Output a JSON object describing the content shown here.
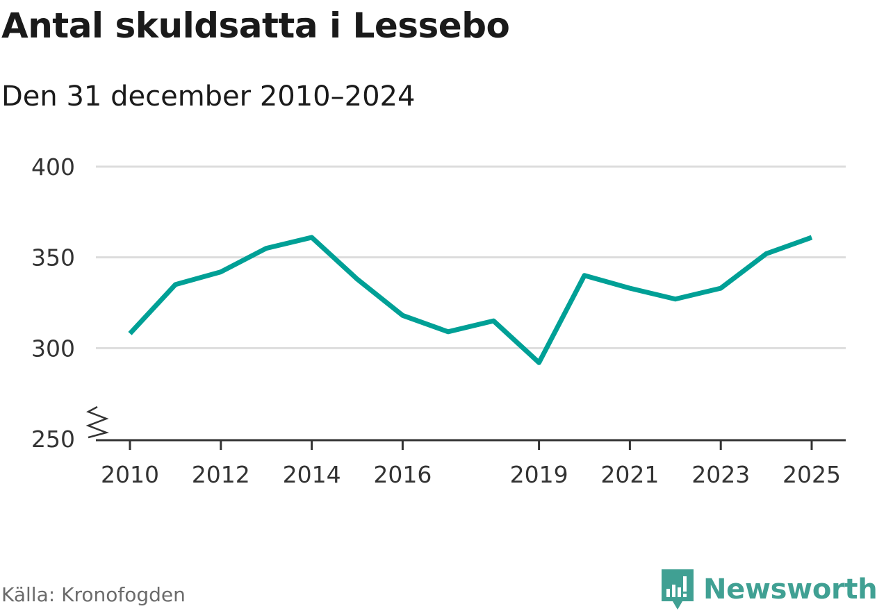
{
  "header": {
    "title": "Antal skuldsatta i Lessebo",
    "subtitle": "Den 31 december 2010–2024"
  },
  "footer": {
    "source": "Källa: Kronofogden",
    "brand": "Newsworthy"
  },
  "colors": {
    "line": "#00a096",
    "grid": "#dddddd",
    "axis": "#333333",
    "brand": "#40a093"
  },
  "chart_data": {
    "type": "line",
    "title": "Antal skuldsatta i Lessebo",
    "subtitle": "Den 31 december 2010–2024",
    "xlabel": "",
    "ylabel": "",
    "xlim": [
      2009.6,
      2025.8
    ],
    "ylim": [
      250,
      400
    ],
    "x_ticks": [
      2010,
      2012,
      2014,
      2016,
      2019,
      2021,
      2023,
      2025
    ],
    "y_ticks": [
      250,
      300,
      350,
      400
    ],
    "grid": true,
    "axis_break": true,
    "series": [
      {
        "name": "Antal skuldsatta",
        "x": [
          2010,
          2011,
          2012,
          2013,
          2014,
          2015,
          2016,
          2017,
          2018,
          2019,
          2020,
          2021,
          2022,
          2023,
          2024,
          2025
        ],
        "values": [
          308,
          335,
          342,
          355,
          361,
          338,
          318,
          309,
          315,
          292,
          340,
          333,
          327,
          333,
          352,
          361
        ]
      }
    ]
  }
}
